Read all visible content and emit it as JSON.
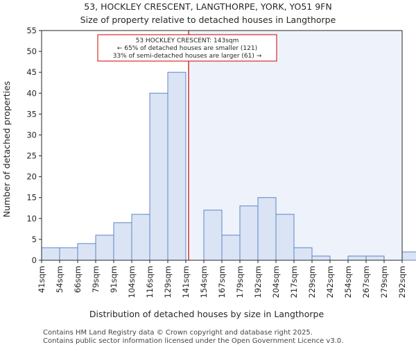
{
  "chart_data": {
    "type": "bar",
    "title": "53, HOCKLEY CRESCENT, LANGTHORPE, YORK, YO51 9FN",
    "subtitle": "Size of property relative to detached houses in Langthorpe",
    "xlabel": "Distribution of detached houses by size in Langthorpe",
    "ylabel": "Number of detached properties",
    "categories": [
      "41sqm",
      "54sqm",
      "66sqm",
      "79sqm",
      "91sqm",
      "104sqm",
      "116sqm",
      "129sqm",
      "141sqm",
      "154sqm",
      "167sqm",
      "179sqm",
      "192sqm",
      "204sqm",
      "217sqm",
      "229sqm",
      "242sqm",
      "254sqm",
      "267sqm",
      "279sqm",
      "292sqm"
    ],
    "values": [
      3,
      3,
      4,
      6,
      9,
      11,
      40,
      45,
      0,
      12,
      6,
      13,
      15,
      11,
      3,
      1,
      0,
      1,
      1,
      0,
      2
    ],
    "yticks": [
      0,
      5,
      10,
      15,
      20,
      25,
      30,
      35,
      40,
      45,
      50,
      55
    ],
    "ylim": [
      0,
      55
    ],
    "grid": false,
    "marker": {
      "value_sqm": 143,
      "line_color": "#cc0000",
      "annotation_lines": [
        "53 HOCKLEY CRESCENT: 143sqm",
        "← 65% of detached houses are smaller (121)",
        "33% of semi-detached houses are larger (61) →"
      ]
    },
    "colors": {
      "bar_fill": "#dbe4f5",
      "bar_edge": "#5b86c5",
      "highlight_region": "#eef2fb"
    }
  },
  "footer": {
    "line1": "Contains HM Land Registry data © Crown copyright and database right 2025.",
    "line2": "Contains public sector information licensed under the Open Government Licence v3.0."
  }
}
